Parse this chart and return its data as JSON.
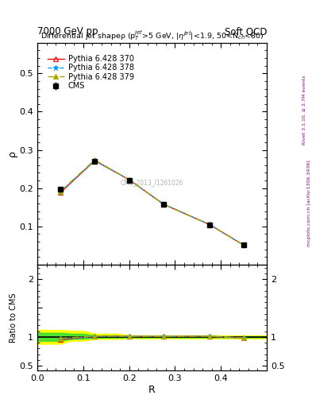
{
  "title_top": "7000 GeV pp",
  "title_right": "Soft QCD",
  "plot_title": "Differential jet shapeρ (p$_T^{jet}$>5 GeV, |η$^{jet}$|<1.9, 50<N$_{ch}$<80)",
  "xlabel": "R",
  "ylabel_main": "ρ",
  "ylabel_ratio": "Ratio to CMS",
  "right_label": "Rivet 3.1.10, ≥ 2.7M events",
  "right_label2": "mcplots.cern.ch [arXiv:1306.3436]",
  "watermark": "CMS_2013_I1261026",
  "x_values": [
    0.05,
    0.125,
    0.2,
    0.275,
    0.375,
    0.45
  ],
  "cms_y": [
    0.197,
    0.27,
    0.22,
    0.157,
    0.104,
    0.052
  ],
  "cms_yerr": [
    0.005,
    0.006,
    0.005,
    0.004,
    0.003,
    0.002
  ],
  "py370_y": [
    0.188,
    0.272,
    0.222,
    0.158,
    0.105,
    0.051
  ],
  "py378_y": [
    0.19,
    0.272,
    0.222,
    0.158,
    0.105,
    0.051
  ],
  "py379_y": [
    0.192,
    0.274,
    0.222,
    0.158,
    0.105,
    0.051
  ],
  "ratio_py370": [
    0.954,
    1.007,
    1.009,
    1.006,
    1.01,
    0.981
  ],
  "ratio_py378": [
    0.964,
    1.007,
    1.009,
    1.008,
    1.01,
    0.981
  ],
  "ratio_py379": [
    0.975,
    1.015,
    1.009,
    1.008,
    1.01,
    0.981
  ],
  "color_370": "#ff0000",
  "color_378": "#0099ff",
  "color_379": "#aaaa00",
  "ylim_main": [
    0.0,
    0.58
  ],
  "ylim_ratio": [
    0.42,
    2.25
  ],
  "yticks_main": [
    0.1,
    0.2,
    0.3,
    0.4,
    0.5
  ],
  "yticks_ratio": [
    0.5,
    1.0,
    1.5,
    2.0
  ],
  "xticks": [
    0.0,
    0.1,
    0.2,
    0.3,
    0.4
  ],
  "xlim": [
    0.0,
    0.5
  ],
  "band_x": [
    0.0,
    0.025,
    0.05,
    0.075,
    0.1,
    0.125,
    0.175,
    0.2,
    0.5
  ],
  "band_yellow_lo": [
    0.88,
    0.88,
    0.88,
    0.935,
    0.935,
    0.965,
    0.965,
    0.975,
    0.975
  ],
  "band_yellow_hi": [
    1.12,
    1.12,
    1.12,
    1.105,
    1.105,
    1.055,
    1.055,
    1.025,
    1.025
  ],
  "band_green_lo": [
    0.93,
    0.93,
    0.93,
    0.965,
    0.965,
    0.985,
    0.985,
    0.99,
    0.99
  ],
  "band_green_hi": [
    1.07,
    1.07,
    1.07,
    1.055,
    1.055,
    1.025,
    1.025,
    1.01,
    1.01
  ]
}
